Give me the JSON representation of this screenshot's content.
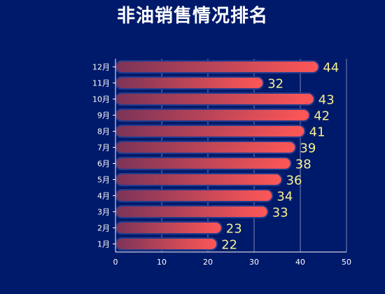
{
  "chart_data": {
    "type": "bar",
    "orientation": "horizontal",
    "title": "非油销售情况排名",
    "categories": [
      "1月",
      "2月",
      "3月",
      "4月",
      "5月",
      "6月",
      "7月",
      "8月",
      "9月",
      "10月",
      "11月",
      "12月"
    ],
    "values": [
      22,
      23,
      33,
      34,
      36,
      38,
      39,
      41,
      42,
      43,
      32,
      44
    ],
    "xlim": [
      0,
      50
    ],
    "xticks": [
      0,
      10,
      20,
      30,
      40,
      50
    ],
    "grid": true,
    "colors": {
      "background": "#001a6b",
      "bar_start": "#7b3358",
      "bar_end": "#ff5757",
      "bar_border": "#233c8e",
      "value_label": "#f5f08f",
      "axis": "#ffffff",
      "grid": "#7c86b6"
    }
  }
}
